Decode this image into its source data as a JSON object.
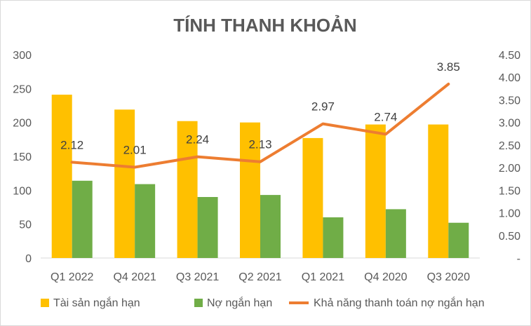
{
  "chart_data": {
    "type": "bar",
    "title": "TÍNH THANH KHOẢN",
    "categories": [
      "Q1 2022",
      "Q4 2021",
      "Q3 2021",
      "Q2 2021",
      "Q1 2021",
      "Q4 2020",
      "Q3 2020"
    ],
    "series": [
      {
        "name": "Tài sản ngắn hạn",
        "type": "bar",
        "axis": "left",
        "color": "#FFC000",
        "values": [
          241,
          219,
          202,
          200,
          177,
          197,
          197
        ]
      },
      {
        "name": "Nợ ngắn hạn",
        "type": "bar",
        "axis": "left",
        "color": "#70AD47",
        "values": [
          114,
          109,
          90,
          93,
          60,
          72,
          52
        ]
      },
      {
        "name": "Khả năng thanh toán nợ ngắn hạn",
        "type": "line",
        "axis": "right",
        "color": "#ED7D31",
        "values": [
          2.12,
          2.01,
          2.24,
          2.13,
          2.97,
          2.74,
          3.85
        ],
        "labels": [
          "2.12",
          "2.01",
          "2.24",
          "2.13",
          "2.97",
          "2.74",
          "3.85"
        ]
      }
    ],
    "y_left": {
      "ylim": [
        0,
        300
      ],
      "ticks": [
        "0",
        "50",
        "100",
        "150",
        "200",
        "250",
        "300"
      ]
    },
    "y_right": {
      "ylim": [
        0,
        4.5
      ],
      "ticks": [
        "-",
        "0.50",
        "1.00",
        "1.50",
        "2.00",
        "2.50",
        "3.00",
        "3.50",
        "4.00",
        "4.50"
      ]
    },
    "grid": false,
    "legend_position": "bottom"
  }
}
